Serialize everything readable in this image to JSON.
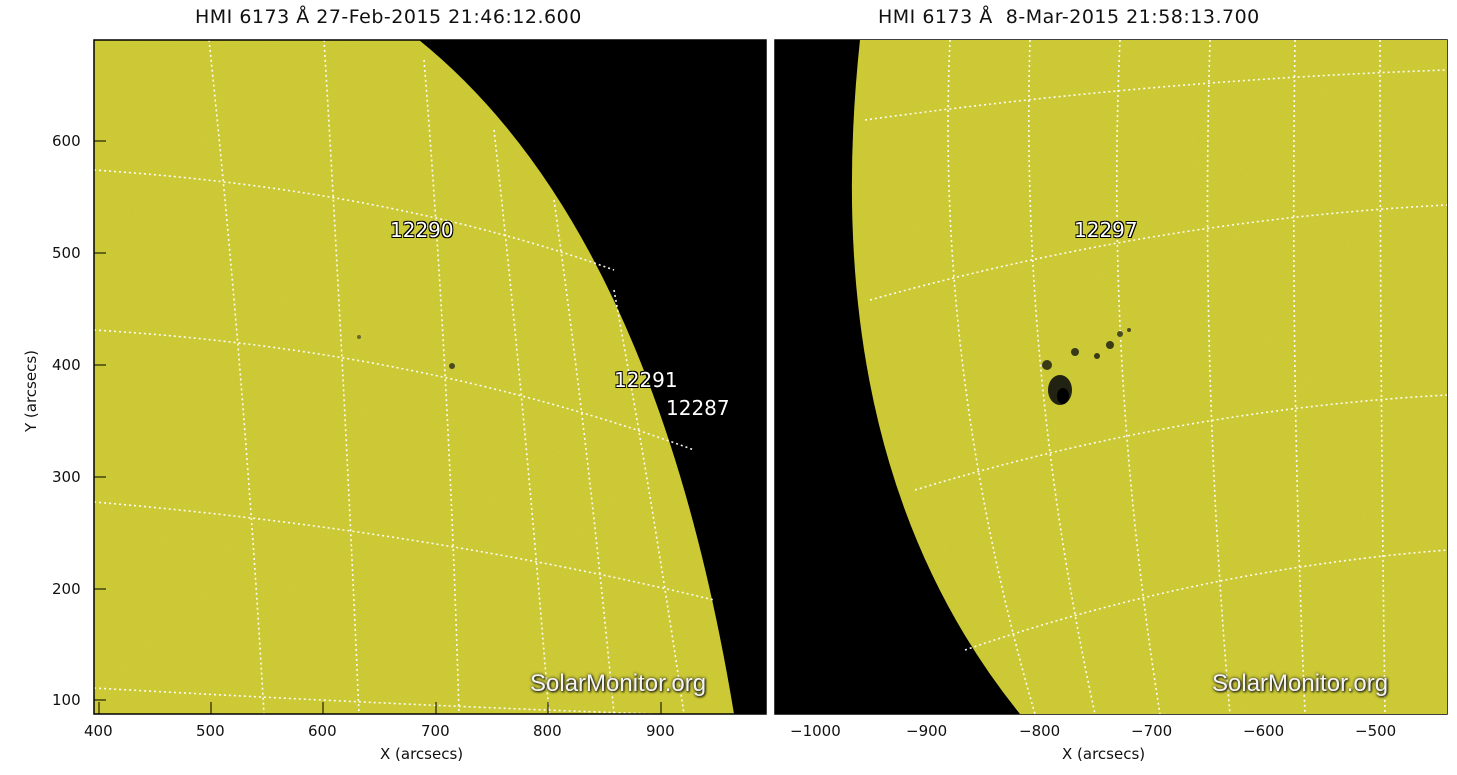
{
  "panels": [
    {
      "title": "HMI 6173 Å 27-Feb-2015 21:46:12.600",
      "x_ticks": [
        "400",
        "500",
        "600",
        "700",
        "800",
        "900"
      ],
      "y_ticks": [
        "100",
        "200",
        "300",
        "400",
        "500",
        "600"
      ],
      "xlabel": "X (arcsecs)",
      "ylabel": "Y (arcsecs)",
      "regions": [
        "12290",
        "12291",
        "12287"
      ],
      "watermark": "SolarMonitor.org"
    },
    {
      "title": "HMI 6173 Å  8-Mar-2015 21:58:13.700",
      "x_ticks": [
        "−1000",
        "−900",
        "−800",
        "−700",
        "−600",
        "−500"
      ],
      "xlabel": "X (arcsecs)",
      "regions": [
        "12297"
      ],
      "watermark": "SolarMonitor.org"
    }
  ],
  "colors": {
    "disk": "#c9c62e",
    "space": "#000000",
    "grid": "#ffffff"
  }
}
